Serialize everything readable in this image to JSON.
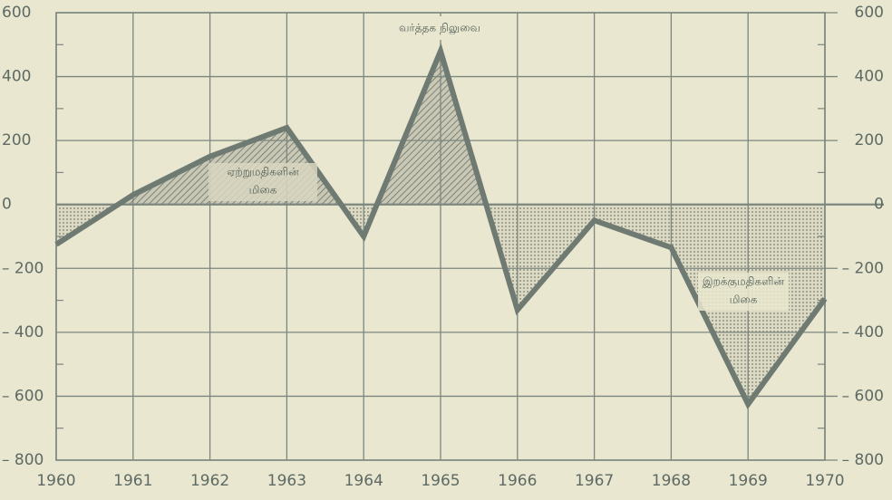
{
  "chart_data": {
    "type": "line",
    "title": "வர்த்தக நிலுவை",
    "annotations": [
      [
        "ஏற்றுமதிகளின்",
        "மிகை"
      ],
      [
        "இறக்குமதிகளின்",
        "மிகை"
      ]
    ],
    "x": [
      1960,
      1961,
      1962,
      1963,
      1964,
      1965,
      1966,
      1967,
      1968,
      1969,
      1970
    ],
    "series": [
      {
        "color": "#6f7a72",
        "values": [
          -125,
          30,
          150,
          240,
          -100,
          480,
          -330,
          -50,
          -135,
          -625,
          -295
        ]
      }
    ],
    "xlim": [
      1960,
      1970
    ],
    "xticks": [
      1960,
      1961,
      1962,
      1963,
      1964,
      1965,
      1966,
      1967,
      1968,
      1969,
      1970
    ],
    "ylim": [
      -800,
      600
    ],
    "yticks": [
      {
        "value": -800,
        "label": "– 800"
      },
      {
        "value": -600,
        "label": "– 600"
      },
      {
        "value": -400,
        "label": "– 400"
      },
      {
        "value": -200,
        "label": "– 200"
      },
      0,
      200,
      400,
      600
    ],
    "grid": true
  }
}
